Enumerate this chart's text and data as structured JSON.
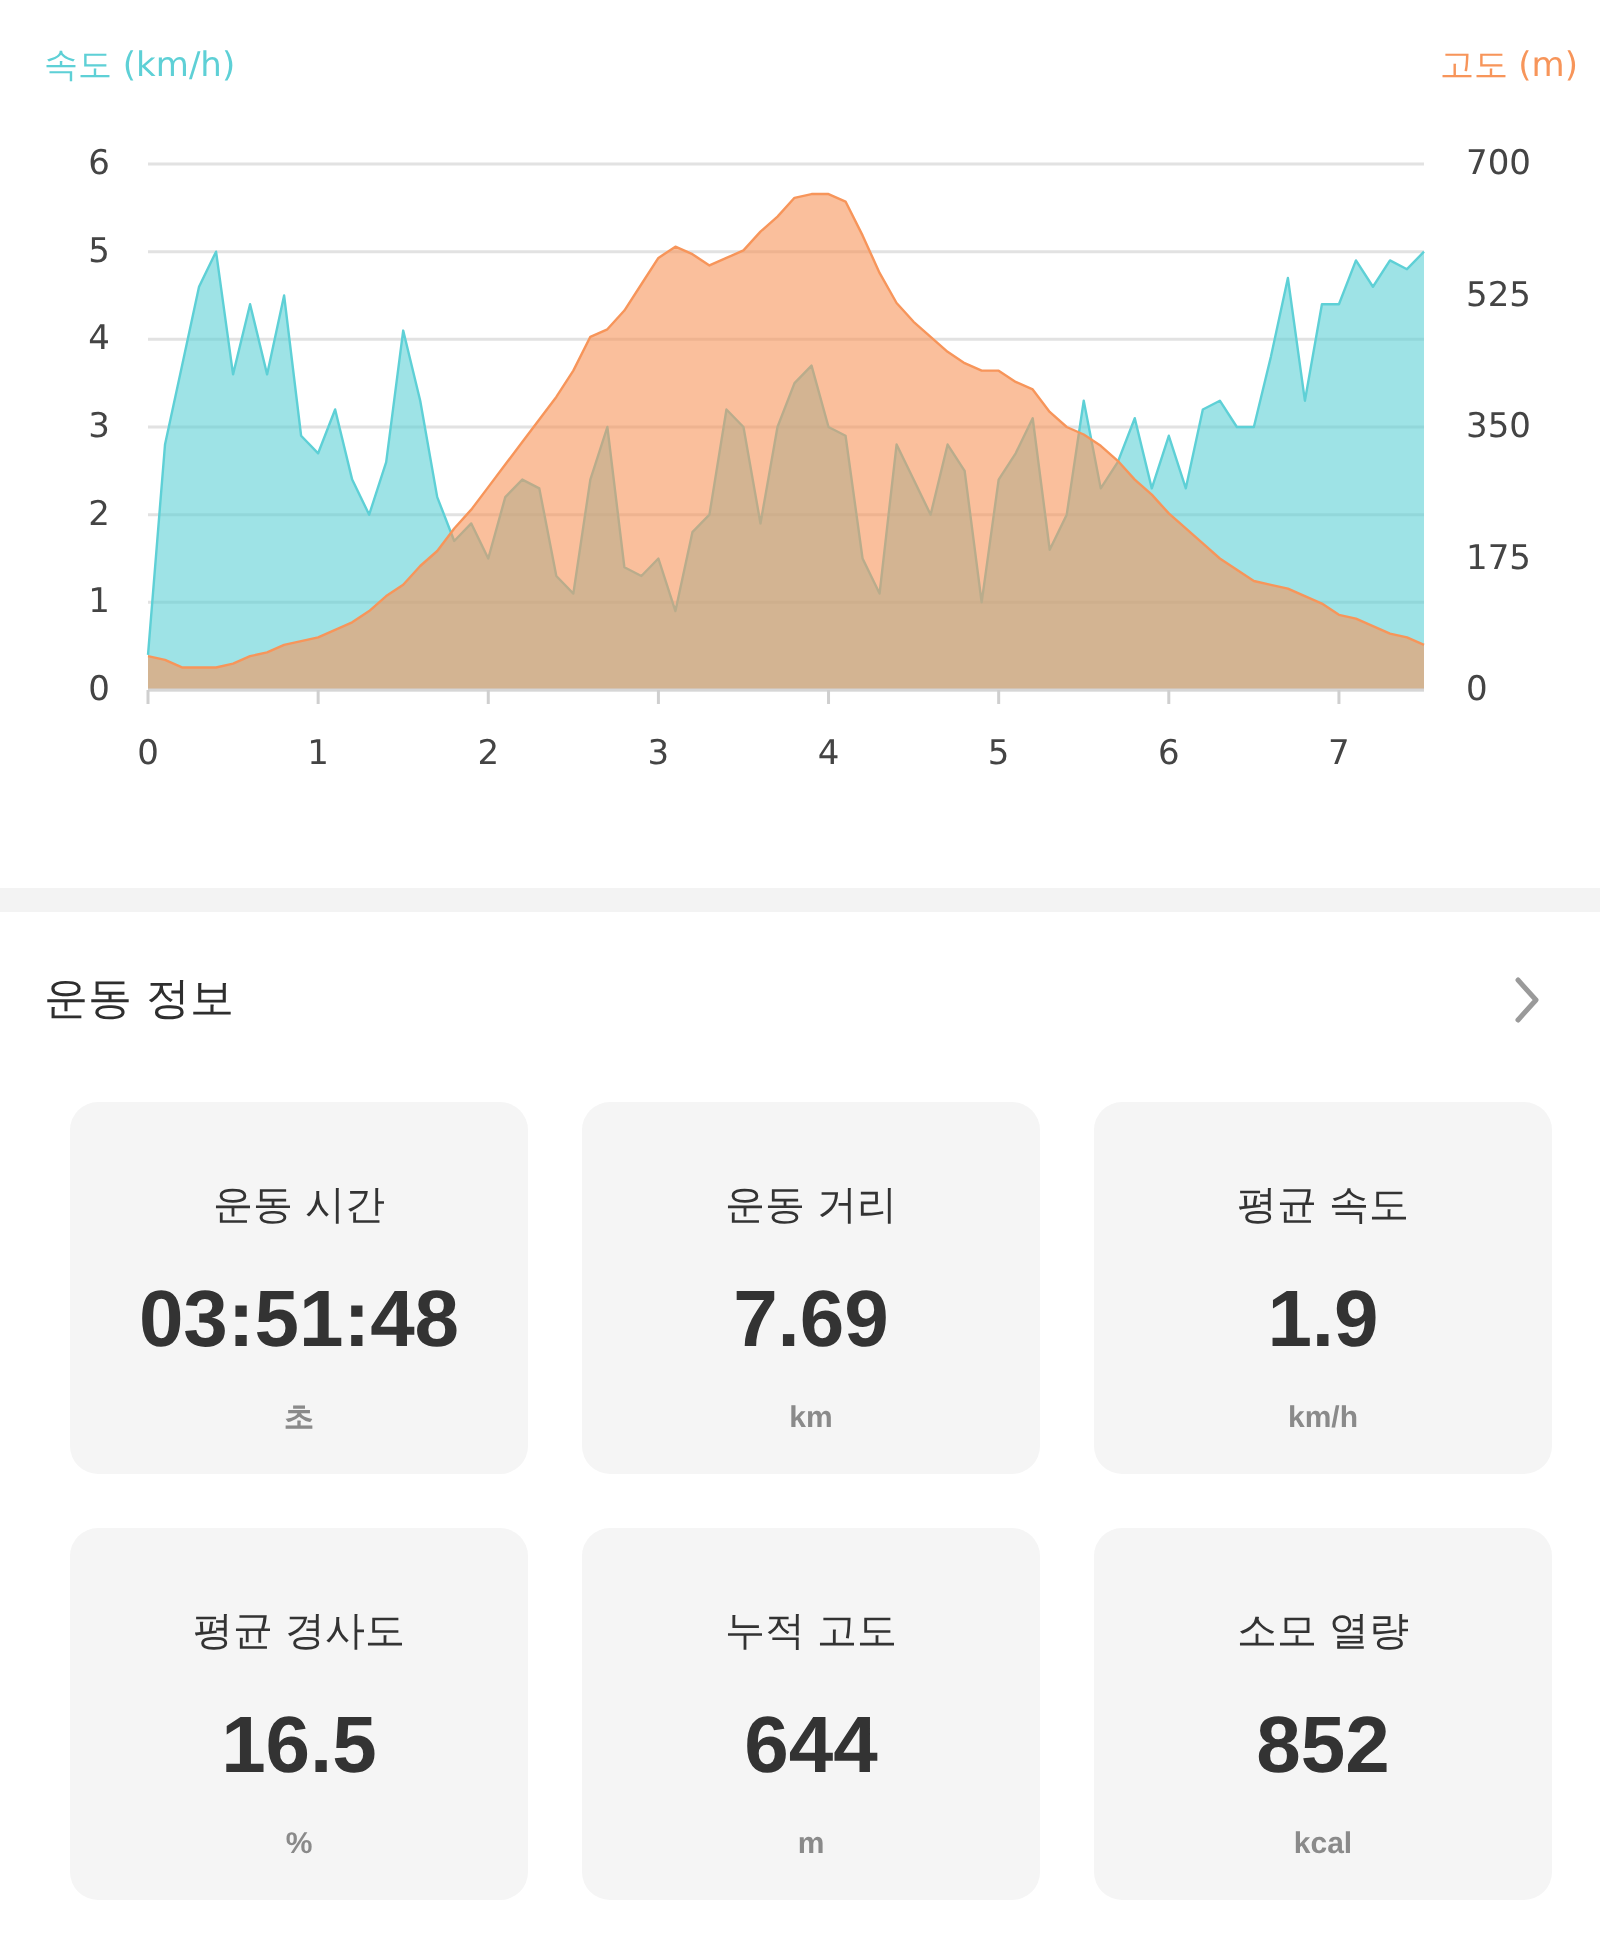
{
  "chart_data": [
    {
      "type": "area",
      "ylabel": "속도 (km/h)",
      "y2label": "고도 (m)",
      "x": [
        0,
        0.1,
        0.2,
        0.3,
        0.4,
        0.5,
        0.6,
        0.7,
        0.8,
        0.9,
        1,
        1.1,
        1.2,
        1.3,
        1.4,
        1.5,
        1.6,
        1.7,
        1.8,
        1.9,
        2,
        2.1,
        2.2,
        2.3,
        2.4,
        2.5,
        2.6,
        2.7,
        2.8,
        2.9,
        3,
        3.1,
        3.2,
        3.3,
        3.4,
        3.5,
        3.6,
        3.7,
        3.8,
        3.9,
        4,
        4.1,
        4.2,
        4.3,
        4.4,
        4.5,
        4.6,
        4.7,
        4.8,
        4.9,
        5,
        5.1,
        5.2,
        5.3,
        5.4,
        5.5,
        5.6,
        5.7,
        5.8,
        5.9,
        6,
        6.1,
        6.2,
        6.3,
        6.4,
        6.5,
        6.6,
        6.7,
        6.8,
        6.9,
        7,
        7.1,
        7.2,
        7.3,
        7.4,
        7.5
      ],
      "series": [
        {
          "color": "#5ed0d6",
          "values": [
            0.4,
            2.8,
            3.7,
            4.6,
            5.0,
            3.6,
            4.4,
            3.6,
            4.5,
            2.9,
            2.7,
            3.2,
            2.4,
            2.0,
            2.6,
            4.1,
            3.3,
            2.2,
            1.7,
            1.9,
            1.5,
            2.2,
            2.4,
            2.3,
            1.3,
            1.1,
            2.4,
            3.0,
            1.4,
            1.3,
            1.5,
            0.9,
            1.8,
            2.0,
            3.2,
            3.0,
            1.9,
            3.0,
            3.5,
            3.7,
            3.0,
            2.9,
            1.5,
            1.1,
            2.8,
            2.4,
            2.0,
            2.8,
            2.5,
            1.0,
            2.4,
            2.7,
            3.1,
            1.6,
            2.0,
            3.3,
            2.3,
            2.6,
            3.1,
            2.3,
            2.9,
            2.3,
            3.2,
            3.3,
            3.0,
            3.0,
            3.8,
            4.7,
            3.3,
            4.4,
            4.4,
            4.9,
            4.6,
            4.9,
            4.8,
            5.0
          ]
        },
        {
          "color": "#f7955a",
          "axis": "y2",
          "values": [
            45,
            40,
            30,
            30,
            30,
            35,
            45,
            50,
            60,
            65,
            70,
            80,
            90,
            105,
            125,
            140,
            165,
            185,
            215,
            240,
            270,
            300,
            330,
            360,
            390,
            425,
            470,
            480,
            505,
            540,
            575,
            590,
            580,
            565,
            575,
            585,
            610,
            630,
            655,
            660,
            660,
            650,
            605,
            555,
            515,
            490,
            470,
            450,
            435,
            425,
            425,
            410,
            400,
            370,
            350,
            340,
            325,
            305,
            280,
            260,
            235,
            215,
            195,
            175,
            160,
            145,
            140,
            135,
            125,
            115,
            100,
            95,
            85,
            75,
            70,
            60
          ]
        }
      ],
      "xlim": [
        0,
        7.5
      ],
      "xticks": [
        0,
        1,
        2,
        3,
        4,
        5,
        6,
        7
      ],
      "ylim": [
        0,
        6
      ],
      "yticks": [
        0,
        1,
        2,
        3,
        4,
        5,
        6
      ],
      "y2lim": [
        0,
        700
      ],
      "y2ticks": [
        0,
        175,
        350,
        525,
        700
      ],
      "grid": "y"
    },
    {
      "type": "other",
      "title": "운동 정보",
      "annotations": [
        "운동 시간",
        "03:51:48",
        "초",
        "운동 거리",
        "7.69",
        "km",
        "평균 속도",
        "1.9",
        "km/h",
        "평균 경사도",
        "16.5",
        "%",
        "누적 고도",
        "644",
        "m",
        "소모 열량",
        "852",
        "kcal"
      ]
    }
  ]
}
